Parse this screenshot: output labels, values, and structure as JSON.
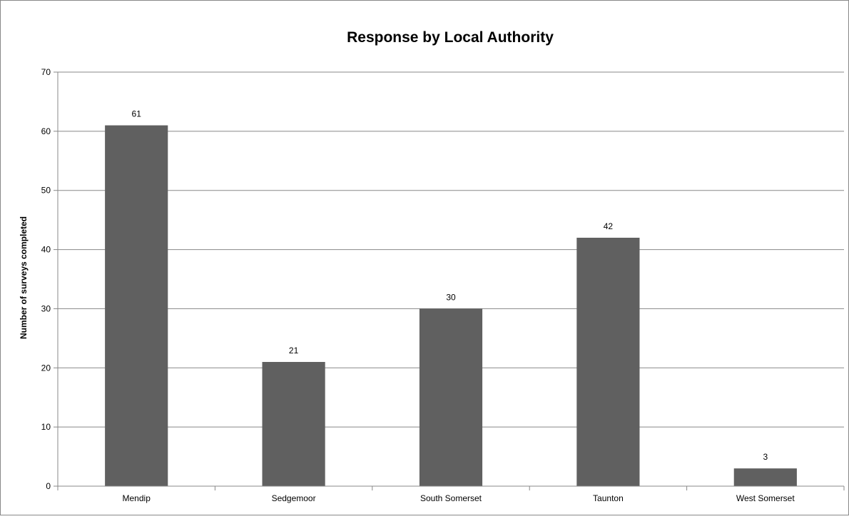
{
  "chart_data": {
    "type": "bar",
    "title": "Response by Local Authority",
    "xlabel": "",
    "ylabel": "Number of surveys completed",
    "categories": [
      "Mendip",
      "Sedgemoor",
      "South Somerset",
      "Taunton",
      "West Somerset"
    ],
    "values": [
      61,
      21,
      30,
      42,
      3
    ],
    "data_labels": [
      "61",
      "21",
      "30",
      "42",
      "3"
    ],
    "ylim": [
      0,
      70
    ],
    "yticks": [
      0,
      10,
      20,
      30,
      40,
      50,
      60,
      70
    ],
    "grid": true,
    "legend": "none",
    "colors": {
      "bar": "#606060",
      "grid": "#888888",
      "axis": "#888888",
      "text": "#000000"
    }
  }
}
